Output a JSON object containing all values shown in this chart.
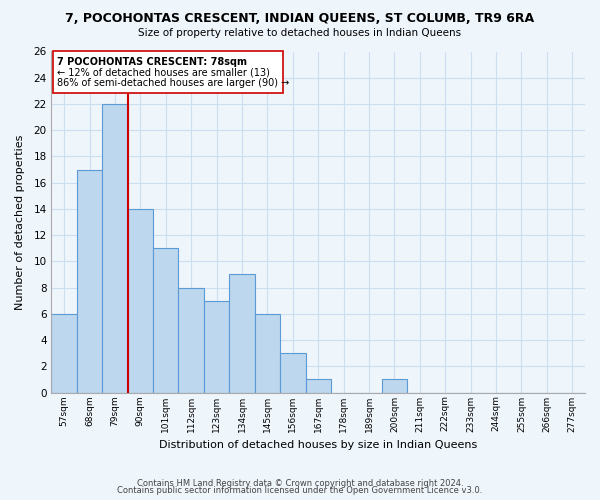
{
  "title": "7, POCOHONTAS CRESCENT, INDIAN QUEENS, ST COLUMB, TR9 6RA",
  "subtitle": "Size of property relative to detached houses in Indian Queens",
  "xlabel": "Distribution of detached houses by size in Indian Queens",
  "ylabel": "Number of detached properties",
  "footer_line1": "Contains HM Land Registry data © Crown copyright and database right 2024.",
  "footer_line2": "Contains public sector information licensed under the Open Government Licence v3.0.",
  "bin_labels": [
    "57sqm",
    "68sqm",
    "79sqm",
    "90sqm",
    "101sqm",
    "112sqm",
    "123sqm",
    "134sqm",
    "145sqm",
    "156sqm",
    "167sqm",
    "178sqm",
    "189sqm",
    "200sqm",
    "211sqm",
    "222sqm",
    "233sqm",
    "244sqm",
    "255sqm",
    "266sqm",
    "277sqm"
  ],
  "bar_heights": [
    6,
    17,
    22,
    14,
    11,
    8,
    7,
    9,
    6,
    3,
    1,
    0,
    0,
    1,
    0,
    0,
    0,
    0,
    0,
    0,
    0
  ],
  "bar_color": "#bdd7ee",
  "bar_edge_color": "#5b9bd5",
  "highlight_bar_index": 2,
  "highlight_color": "#cc0000",
  "ylim": [
    0,
    26
  ],
  "yticks": [
    0,
    2,
    4,
    6,
    8,
    10,
    12,
    14,
    16,
    18,
    20,
    22,
    24,
    26
  ],
  "annotation_title": "7 POCOHONTAS CRESCENT: 78sqm",
  "annotation_line1": "← 12% of detached houses are smaller (13)",
  "annotation_line2": "86% of semi-detached houses are larger (90) →",
  "grid_color": "#ccdff0",
  "background_color": "#eef5fb"
}
